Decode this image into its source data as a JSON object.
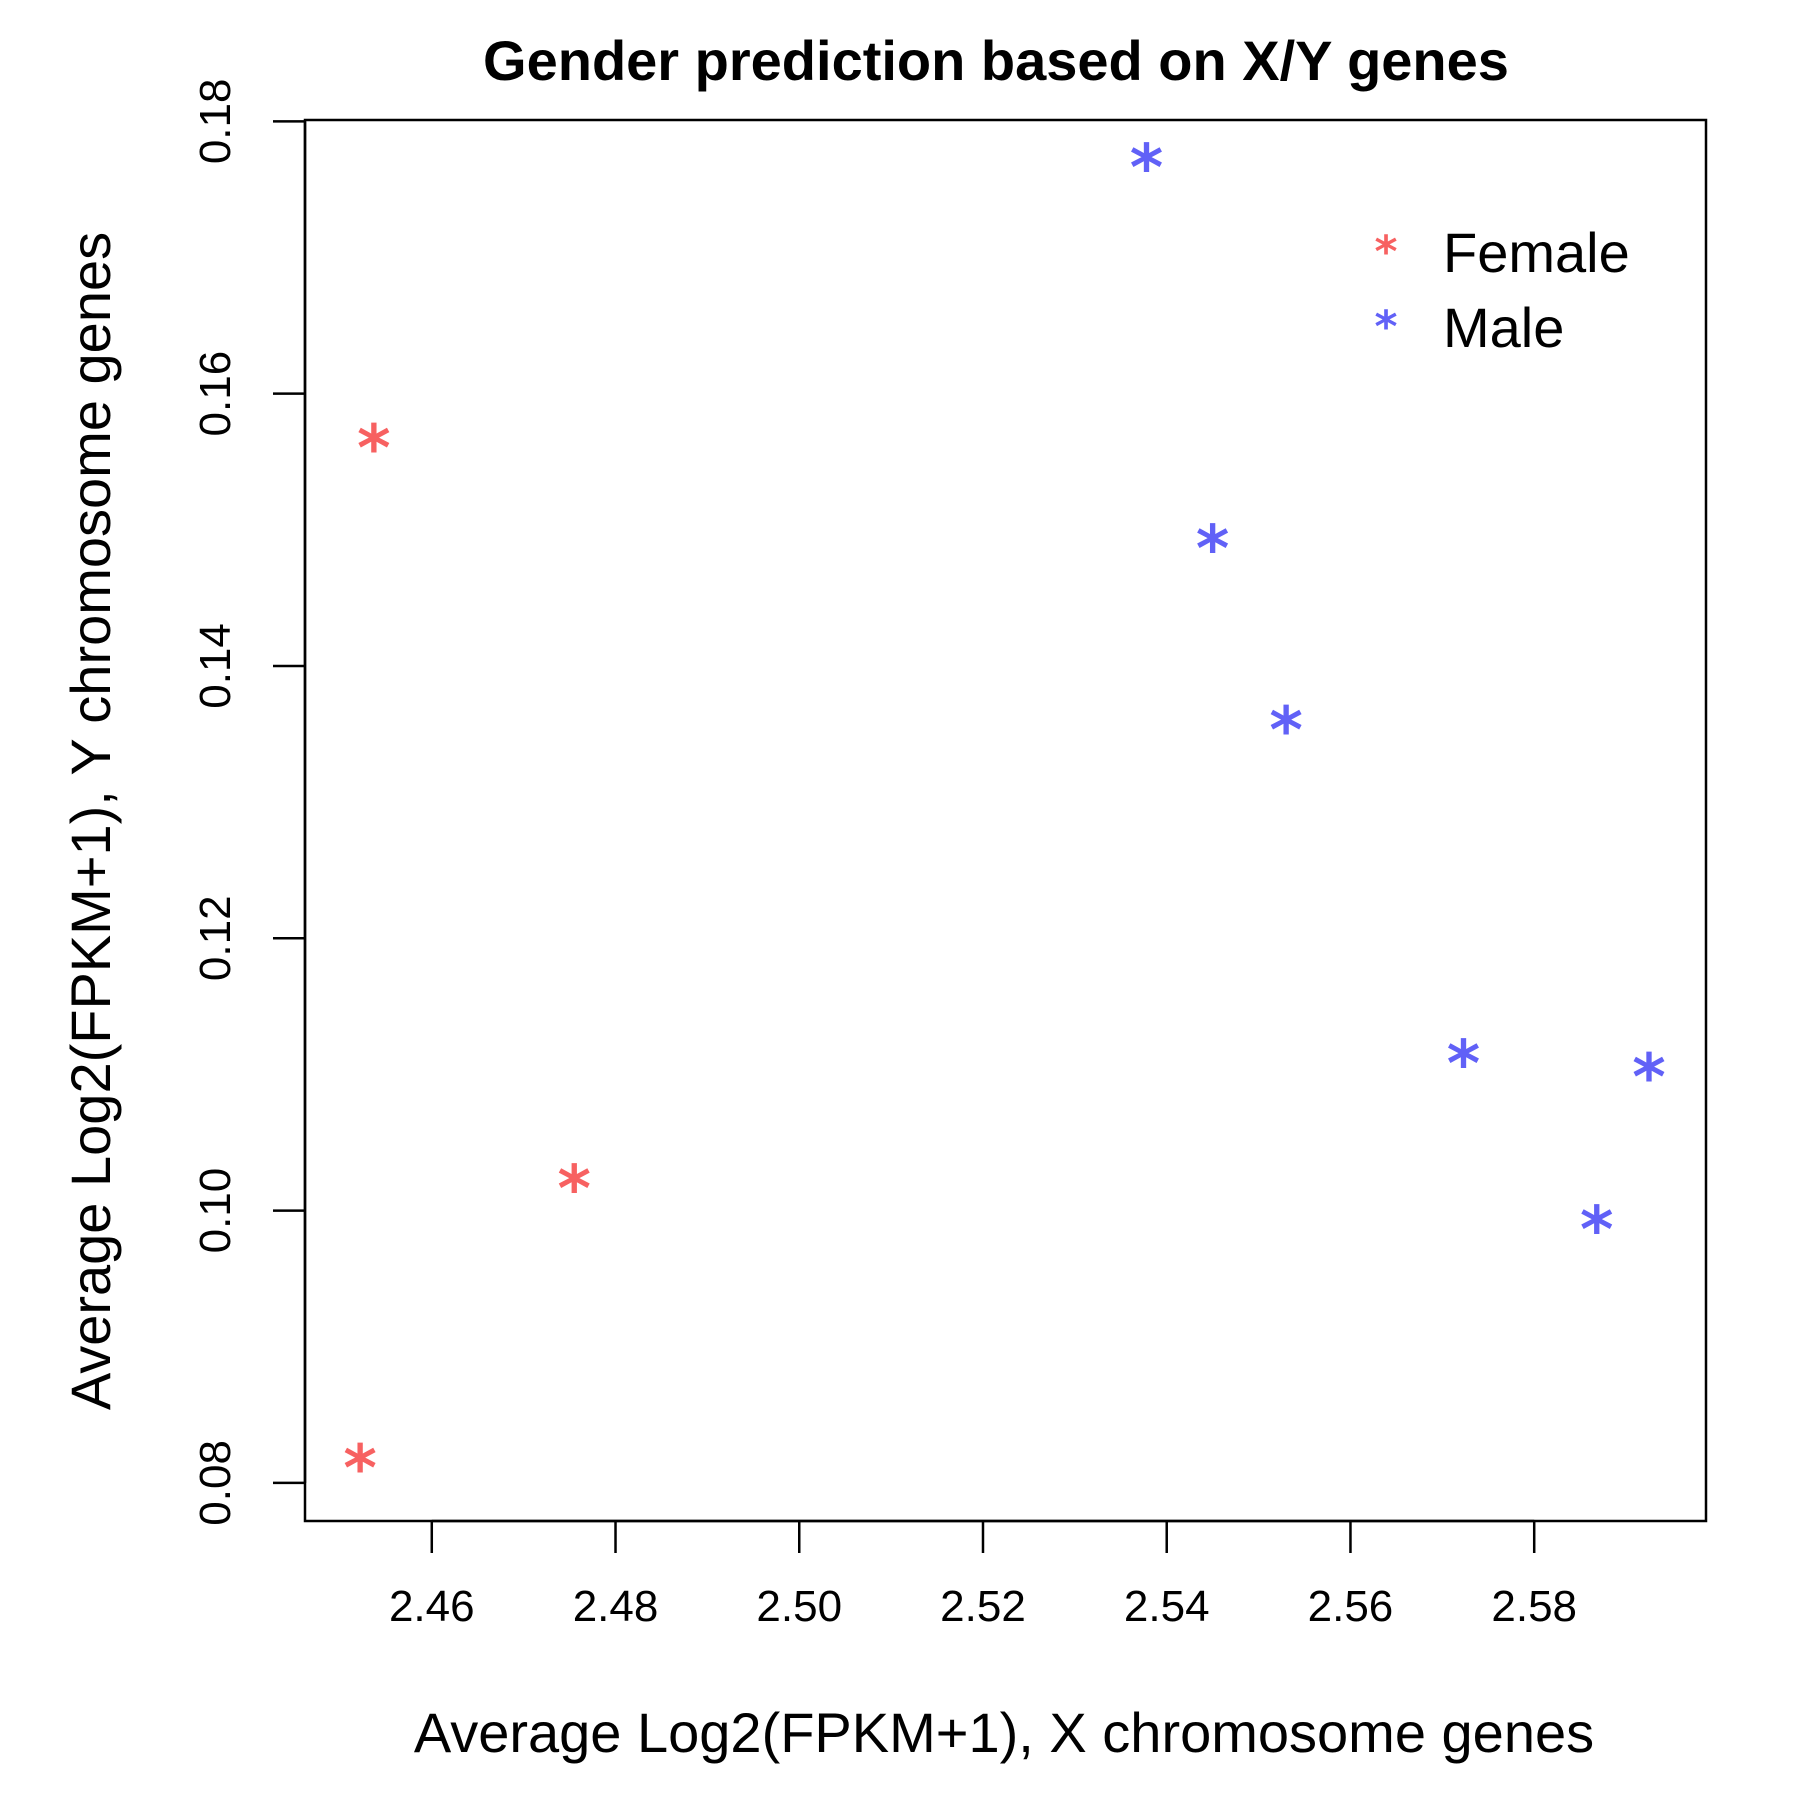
{
  "chart_data": {
    "type": "scatter",
    "title": "Gender prediction based on X/Y genes",
    "xlabel": "Average Log2(FPKM+1), X chromosome genes",
    "ylabel": "Average Log2(FPKM+1), Y chromosome genes",
    "xlim": [
      2.4462,
      2.5987
    ],
    "ylim": [
      0.0772,
      0.1801
    ],
    "x_ticks": [
      2.46,
      2.48,
      2.5,
      2.52,
      2.54,
      2.56,
      2.58
    ],
    "x_tick_labels": [
      "2.46",
      "2.48",
      "2.50",
      "2.52",
      "2.54",
      "2.56",
      "2.58"
    ],
    "y_ticks": [
      0.08,
      0.1,
      0.12,
      0.14,
      0.16,
      0.18
    ],
    "y_tick_labels": [
      "0.08",
      "0.10",
      "0.12",
      "0.14",
      "0.16",
      "0.18"
    ],
    "marker": "*",
    "grid": false,
    "legend": "top-right",
    "series": [
      {
        "name": "Female",
        "color": "#F76161",
        "points": [
          {
            "x": 2.4537,
            "y": 0.1559
          },
          {
            "x": 2.4755,
            "y": 0.1015
          },
          {
            "x": 2.4522,
            "y": 0.081
          }
        ]
      },
      {
        "name": "Male",
        "color": "#6161F7",
        "points": [
          {
            "x": 2.5378,
            "y": 0.1765
          },
          {
            "x": 2.545,
            "y": 0.1485
          },
          {
            "x": 2.553,
            "y": 0.1352
          },
          {
            "x": 2.5723,
            "y": 0.1107
          },
          {
            "x": 2.5925,
            "y": 0.1097
          },
          {
            "x": 2.5868,
            "y": 0.0985
          }
        ]
      }
    ]
  }
}
